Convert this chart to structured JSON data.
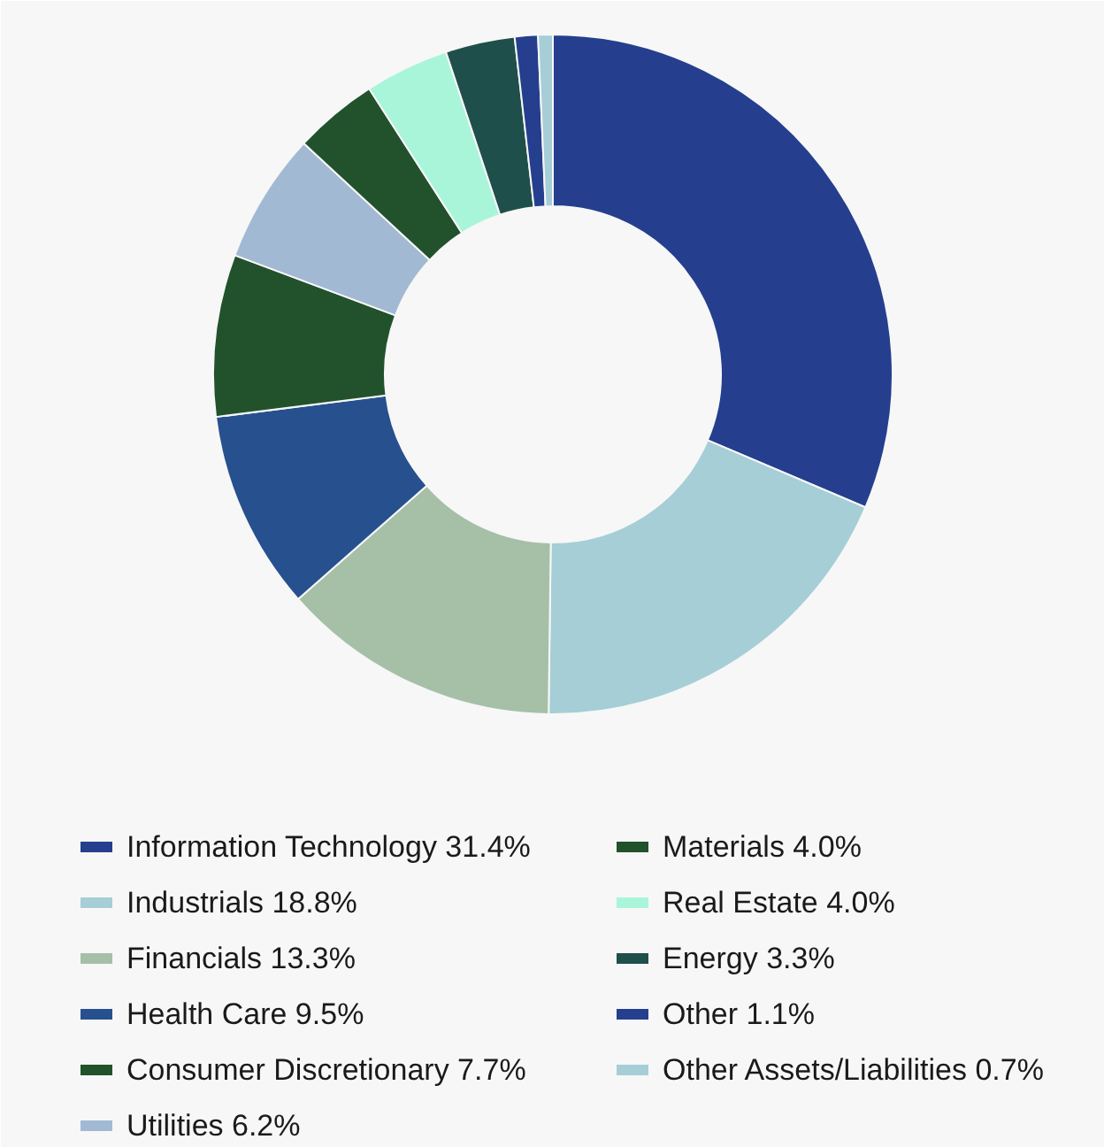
{
  "chart_data": {
    "type": "donut",
    "categories": [
      "Information Technology",
      "Industrials",
      "Financials",
      "Health Care",
      "Consumer Discretionary",
      "Utilities",
      "Materials",
      "Real Estate",
      "Energy",
      "Other",
      "Other Assets/Liabilities"
    ],
    "values": [
      31.4,
      18.8,
      13.3,
      9.5,
      7.7,
      6.2,
      4.0,
      4.0,
      3.3,
      1.1,
      0.7
    ],
    "value_labels": [
      "31.4%",
      "18.8%",
      "13.3%",
      "9.5%",
      "7.7%",
      "6.2%",
      "4.0%",
      "4.0%",
      "3.3%",
      "1.1%",
      "0.7%"
    ],
    "colors": [
      "#253f8e",
      "#a6ced6",
      "#a6c0a8",
      "#27508f",
      "#22522c",
      "#a2b9d4",
      "#22522c",
      "#a9f5da",
      "#1f4f4b",
      "#253f8e",
      "#a6ced6"
    ],
    "legend": "bottom"
  }
}
